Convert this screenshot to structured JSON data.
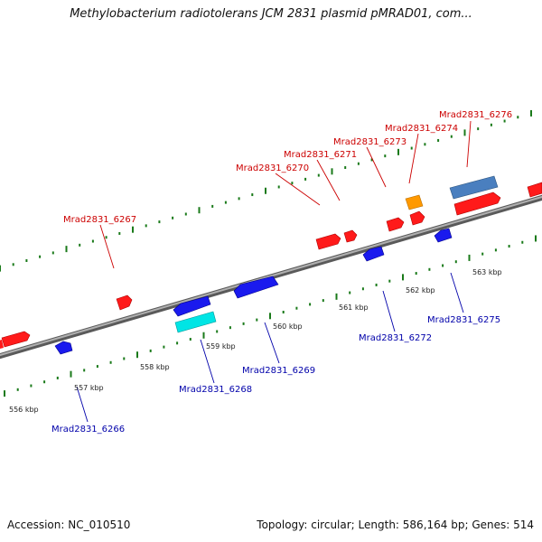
{
  "title": "Methylobacterium radiotolerans JCM 2831 plasmid pMRAD01, com...",
  "footer": {
    "accession": "Accession: NC_010510",
    "summary": "Topology: circular; Length: 586,164 bp; Genes: 514"
  },
  "colors": {
    "forward_gene": "#ff1a1a",
    "reverse_gene": "#1a1aee",
    "rna_gene": "#00e5e5",
    "other_gene": "#ff9900",
    "steel_gene": "#4682b4",
    "forward_tick": "#1a7a1a",
    "axis": "#8a8a8a",
    "forward_label": "#cc0000",
    "reverse_label": "#0000aa"
  },
  "scale_ticks": [
    "556 kbp",
    "557 kbp",
    "558 kbp",
    "559 kbp",
    "560 kbp",
    "561 kbp",
    "562 kbp",
    "563 kbp"
  ],
  "forward_labels": [
    "Mrad2831_6267",
    "Mrad2831_6270",
    "Mrad2831_6271",
    "Mrad2831_6273",
    "Mrad2831_6274",
    "Mrad2831_6276"
  ],
  "reverse_labels": [
    "Mrad2831_6266",
    "Mrad2831_6268",
    "Mrad2831_6269",
    "Mrad2831_6272",
    "Mrad2831_6275"
  ]
}
